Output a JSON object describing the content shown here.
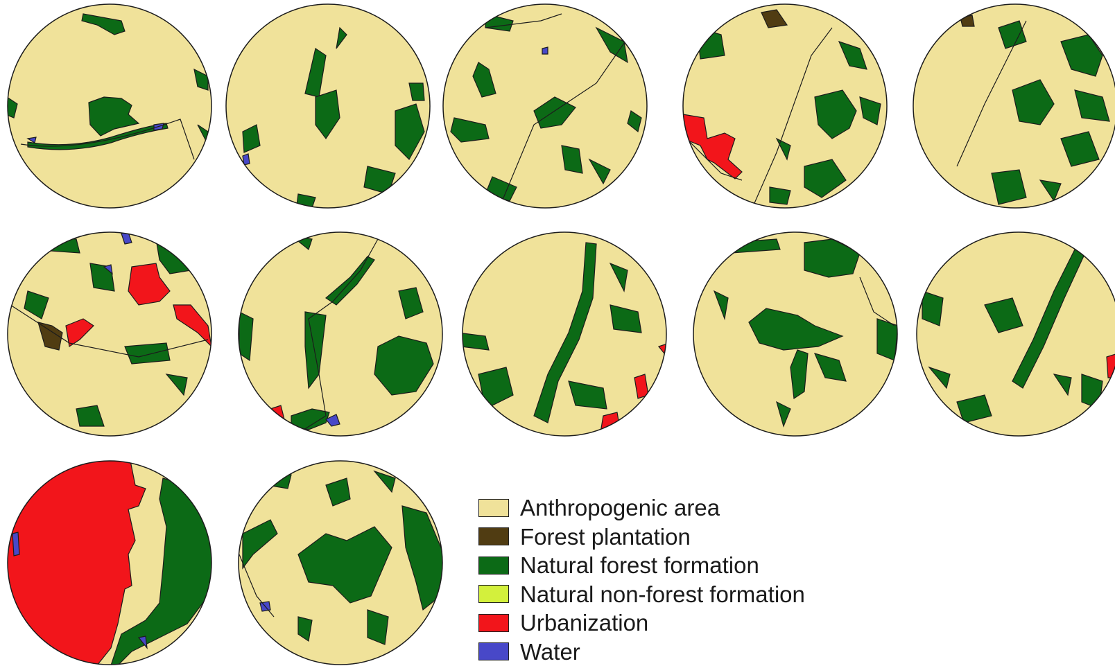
{
  "colors": {
    "anthropogenic": "#f0e29a",
    "forest_plantation": "#503c12",
    "natural_forest": "#0c6a16",
    "non_forest": "#d3f03c",
    "urbanization": "#f2151b",
    "water": "#4848c8",
    "outline": "#1c1c1c"
  },
  "legend": {
    "items": [
      {
        "id": "anthropogenic",
        "label": "Anthropogenic area",
        "color": "#f0e29a"
      },
      {
        "id": "forest_plantation",
        "label": "Forest plantation",
        "color": "#503c12"
      },
      {
        "id": "natural_forest",
        "label": "Natural forest formation",
        "color": "#0c6a16"
      },
      {
        "id": "non_forest",
        "label": "Natural non-forest formation",
        "color": "#d3f03c"
      },
      {
        "id": "urbanization",
        "label": "Urbanization",
        "color": "#f2151b"
      },
      {
        "id": "water",
        "label": "Water",
        "color": "#4848c8"
      }
    ]
  },
  "maps": [
    {
      "id": "map-1"
    },
    {
      "id": "map-2"
    },
    {
      "id": "map-3"
    },
    {
      "id": "map-4"
    },
    {
      "id": "map-5"
    },
    {
      "id": "map-6"
    },
    {
      "id": "map-7"
    },
    {
      "id": "map-8"
    },
    {
      "id": "map-9"
    },
    {
      "id": "map-10"
    },
    {
      "id": "map-11"
    },
    {
      "id": "map-12"
    }
  ]
}
